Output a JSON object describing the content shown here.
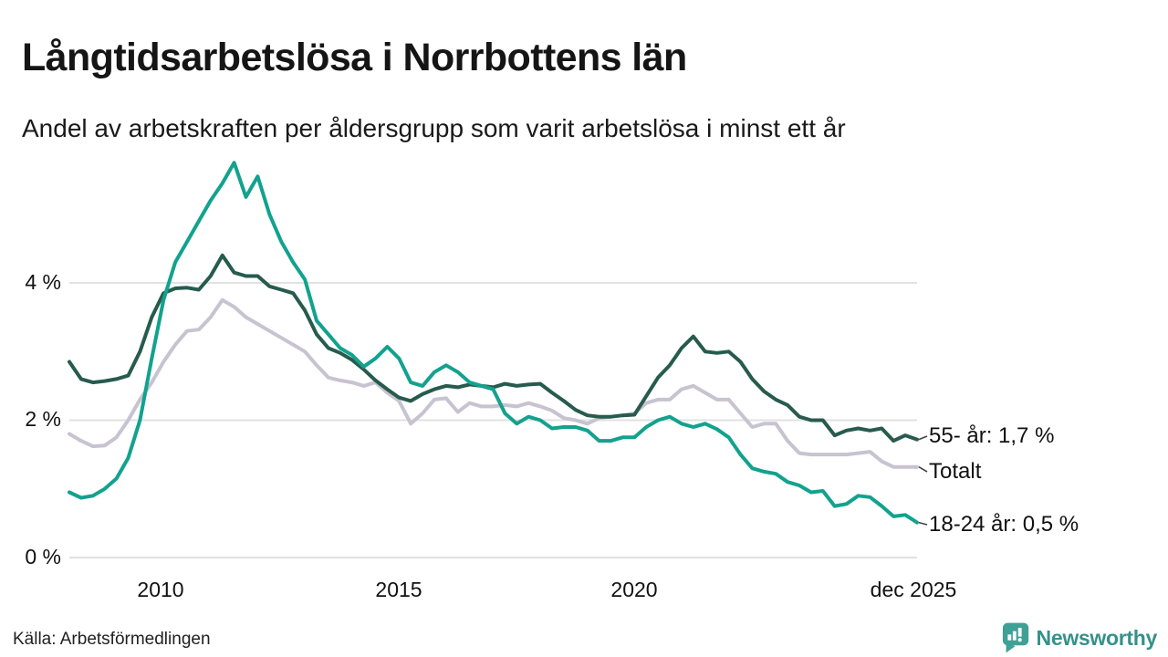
{
  "chart_data": {
    "type": "line",
    "title": "Långtidsarbetslösa i Norrbottens län",
    "subtitle": "Andel av arbetskraften per åldersgrupp som varit arbetslösa i minst ett år",
    "xlabel": "",
    "ylabel": "",
    "grid": true,
    "legend_position": "right-end-labels",
    "x_domain": [
      2008,
      2026
    ],
    "ylim": [
      0,
      6.2
    ],
    "x_ticks": [
      {
        "t": 2010,
        "label": "2010"
      },
      {
        "t": 2015,
        "label": "2015"
      },
      {
        "t": 2020,
        "label": "2020"
      },
      {
        "t": 2025.92,
        "label": "dec 2025"
      }
    ],
    "y_ticks": [
      {
        "v": 4,
        "label": "4 %"
      },
      {
        "v": 2,
        "label": "2 %"
      },
      {
        "v": 0,
        "label": "0 %"
      }
    ],
    "series": [
      {
        "id": "totalt",
        "name": "Totalt",
        "end_label": "Totalt",
        "color": "#c7c3d0",
        "start": 2008,
        "step": 0.25,
        "values": [
          1.8,
          1.7,
          1.62,
          1.63,
          1.75,
          2.0,
          2.3,
          2.55,
          2.85,
          3.1,
          3.3,
          3.32,
          3.5,
          3.75,
          3.65,
          3.5,
          3.4,
          3.3,
          3.2,
          3.1,
          3.0,
          2.8,
          2.62,
          2.58,
          2.55,
          2.5,
          2.55,
          2.4,
          2.28,
          1.95,
          2.1,
          2.3,
          2.32,
          2.12,
          2.25,
          2.2,
          2.2,
          2.22,
          2.2,
          2.25,
          2.2,
          2.14,
          2.03,
          2.0,
          1.95,
          2.03,
          2.05,
          2.07,
          2.1,
          2.25,
          2.3,
          2.3,
          2.45,
          2.5,
          2.4,
          2.3,
          2.3,
          2.1,
          1.9,
          1.95,
          1.95,
          1.7,
          1.52,
          1.5,
          1.5,
          1.5,
          1.5,
          1.52,
          1.54,
          1.4,
          1.32,
          1.32,
          1.32
        ]
      },
      {
        "id": "alder55",
        "name": "55- år",
        "end_label": "55- år: 1,7 %",
        "color": "#275b4e",
        "start": 2008,
        "step": 0.25,
        "values": [
          2.85,
          2.6,
          2.55,
          2.57,
          2.6,
          2.65,
          3.0,
          3.5,
          3.85,
          3.92,
          3.93,
          3.9,
          4.1,
          4.4,
          4.15,
          4.1,
          4.1,
          3.95,
          3.9,
          3.85,
          3.6,
          3.25,
          3.05,
          2.98,
          2.88,
          2.74,
          2.58,
          2.45,
          2.33,
          2.28,
          2.38,
          2.45,
          2.5,
          2.48,
          2.52,
          2.5,
          2.48,
          2.53,
          2.5,
          2.52,
          2.53,
          2.4,
          2.28,
          2.15,
          2.07,
          2.05,
          2.05,
          2.07,
          2.08,
          2.35,
          2.62,
          2.8,
          3.05,
          3.22,
          3.0,
          2.98,
          3.0,
          2.85,
          2.6,
          2.42,
          2.3,
          2.22,
          2.05,
          2.0,
          2.0,
          1.78,
          1.85,
          1.88,
          1.85,
          1.88,
          1.7,
          1.78,
          1.72
        ]
      },
      {
        "id": "alder1824",
        "name": "18-24 år",
        "end_label": "18-24 år: 0,5 %",
        "color": "#12a28e",
        "start": 2008,
        "step": 0.25,
        "values": [
          0.95,
          0.87,
          0.9,
          1.0,
          1.15,
          1.45,
          2.0,
          2.9,
          3.75,
          4.3,
          4.6,
          4.9,
          5.2,
          5.45,
          5.75,
          5.25,
          5.55,
          5.0,
          4.6,
          4.3,
          4.05,
          3.45,
          3.25,
          3.05,
          2.95,
          2.78,
          2.9,
          3.07,
          2.9,
          2.55,
          2.5,
          2.7,
          2.8,
          2.7,
          2.55,
          2.5,
          2.45,
          2.1,
          1.95,
          2.05,
          2.0,
          1.88,
          1.9,
          1.9,
          1.85,
          1.7,
          1.7,
          1.75,
          1.75,
          1.9,
          2.0,
          2.05,
          1.95,
          1.9,
          1.95,
          1.87,
          1.75,
          1.5,
          1.3,
          1.25,
          1.22,
          1.1,
          1.05,
          0.95,
          0.97,
          0.75,
          0.78,
          0.9,
          0.88,
          0.75,
          0.6,
          0.62,
          0.51
        ]
      }
    ]
  },
  "footer": {
    "source": "Källa: Arbetsförmedlingen",
    "brand": "Newsworthy"
  }
}
